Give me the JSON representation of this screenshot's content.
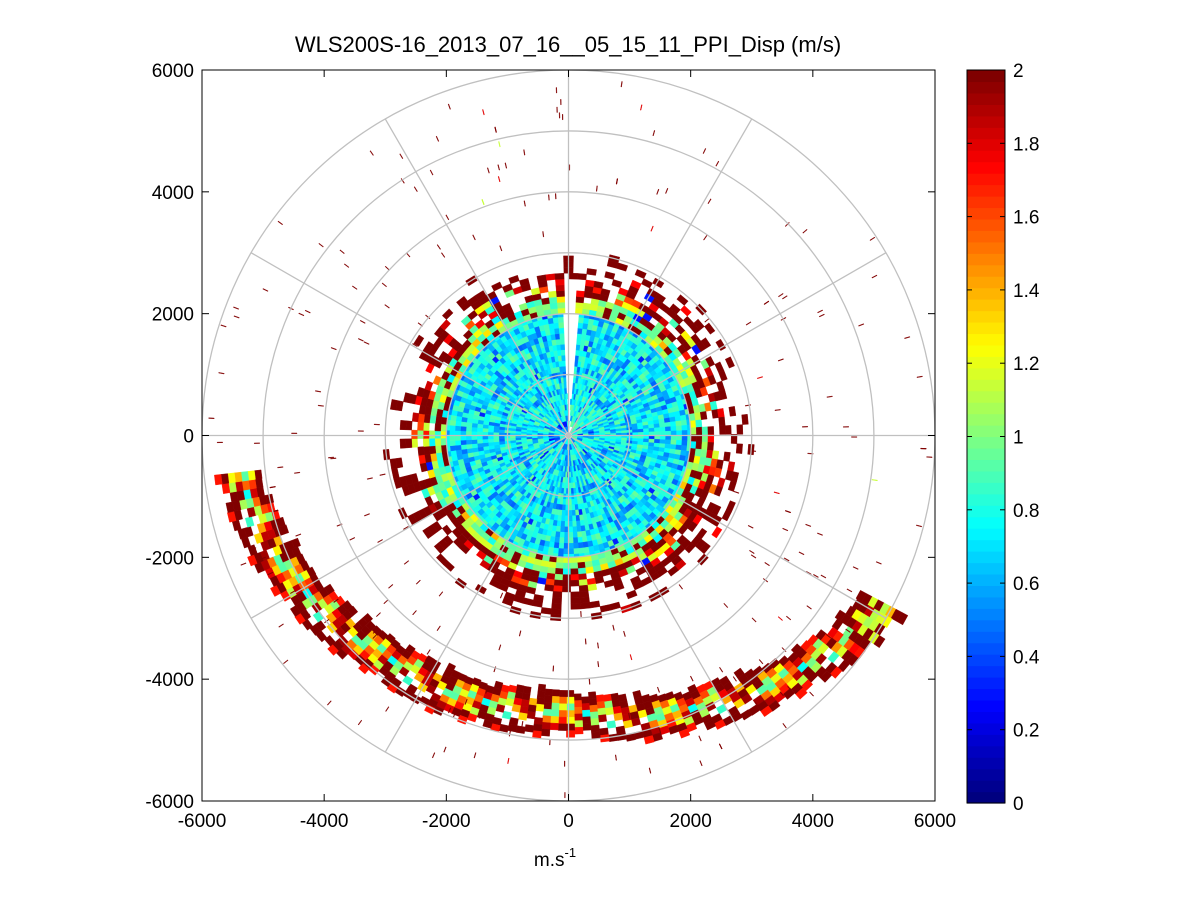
{
  "chart_data": {
    "type": "heatmap",
    "subtype": "polar-ppi",
    "title": "WLS200S-16_2013_07_16__05_15_11_PPI_Disp (m/s)",
    "xlabel_main": "m.s",
    "xlabel_superscript": "-1",
    "ylabel": "",
    "xlim": [
      -6000,
      6000
    ],
    "ylim": [
      -6000,
      6000
    ],
    "x_ticks": [
      -6000,
      -4000,
      -2000,
      0,
      2000,
      4000,
      6000
    ],
    "y_ticks": [
      -6000,
      -4000,
      -2000,
      0,
      2000,
      4000,
      6000
    ],
    "x_tick_labels": [
      "-6000",
      "-4000",
      "-2000",
      "0",
      "2000",
      "4000",
      "6000"
    ],
    "y_tick_labels": [
      "-6000",
      "-4000",
      "-2000",
      "0",
      "2000",
      "4000",
      "6000"
    ],
    "range_rings_m": [
      1000,
      2000,
      3000,
      4000,
      5000,
      6000
    ],
    "spoke_angles_deg": [
      0,
      30,
      60,
      90,
      120,
      150,
      180,
      210,
      240,
      270,
      300,
      330
    ],
    "colorbar": {
      "min": 0,
      "max": 2,
      "ticks": [
        0,
        0.2,
        0.4,
        0.6,
        0.8,
        1,
        1.2,
        1.4,
        1.6,
        1.8,
        2
      ],
      "tick_labels": [
        "0",
        "0.2",
        "0.4",
        "0.6",
        "0.8",
        "1",
        "1.2",
        "1.4",
        "1.6",
        "1.8",
        "2"
      ],
      "colormap": "jet",
      "levels": 64
    },
    "grid": true,
    "data_description_units": "m/s",
    "inner_disc": {
      "r_max": 2700,
      "typical_value": 0.7,
      "value_spread": 0.25
    },
    "inner_edge_ring": {
      "r_min": 2000,
      "r_max": 3000,
      "values_low": 0.9,
      "values_high": 2.0
    },
    "gap_sector_deg": [
      -3,
      3
    ],
    "gap_sector_r_max": 2500,
    "southern_arc": {
      "theta_deg": [
        118,
        262
      ],
      "r_center_by_theta": [
        [
          118,
          5800
        ],
        [
          150,
          5000
        ],
        [
          180,
          4500
        ],
        [
          220,
          4700
        ],
        [
          262,
          5400
        ]
      ],
      "r_width": 600,
      "values_low": 0.8,
      "values_high": 2.0
    },
    "sparse_saturated_value": 2.0,
    "sparse_scatter_r_range": [
      2800,
      5900
    ]
  },
  "colors": {
    "grid_gray": "#c0c0c0",
    "axis_black": "#000000",
    "background": "#ffffff"
  }
}
